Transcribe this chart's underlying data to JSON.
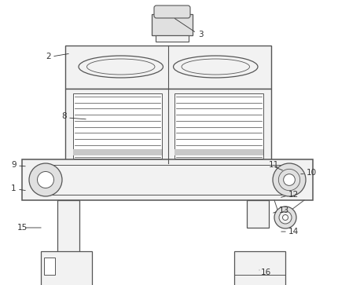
{
  "bg": "#ffffff",
  "lc": "#555555",
  "fill_white": "#ffffff",
  "fill_light": "#f2f2f2",
  "fill_med": "#e0e0e0",
  "fill_dark": "#c8c8c8",
  "label_fs": 7.5,
  "label_color": "#333333"
}
